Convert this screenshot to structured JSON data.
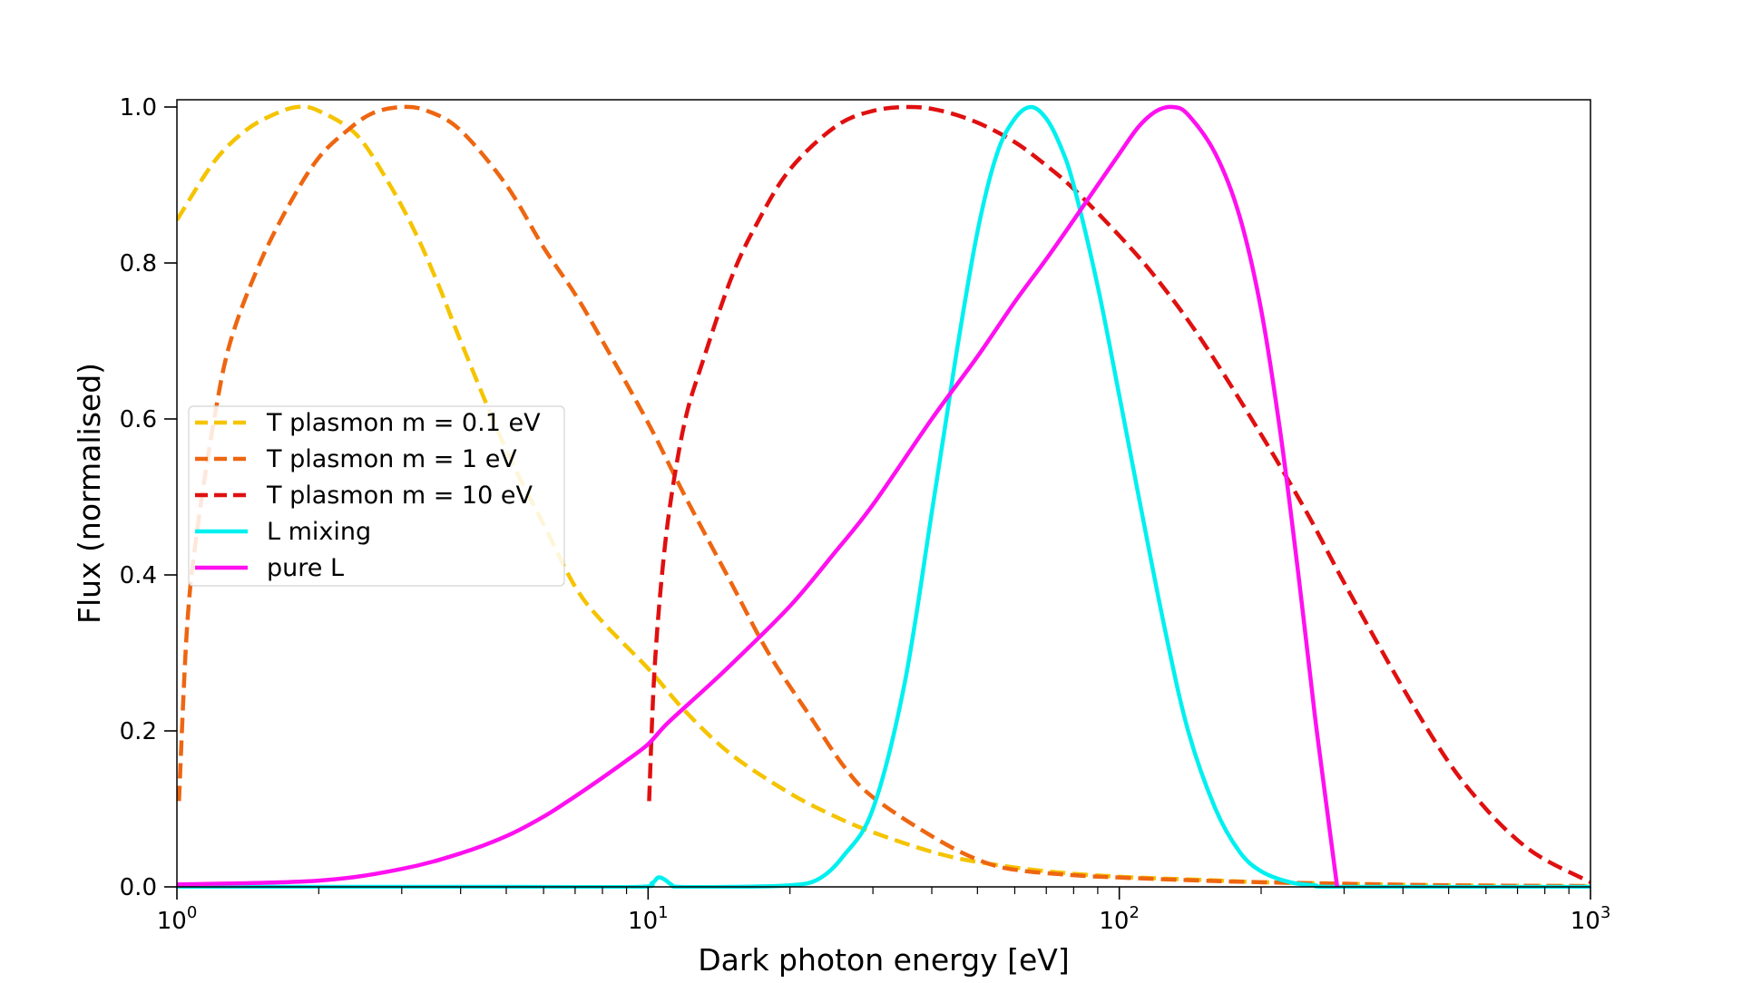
{
  "chart_data": {
    "type": "line",
    "xlabel": "Dark photon energy [eV]",
    "ylabel": "Flux (normalised)",
    "xscale": "log",
    "xlim": [
      1,
      1000
    ],
    "ylim": [
      0,
      1.0
    ],
    "grid": false,
    "legend_position": "center-left",
    "x_ticks": [
      {
        "value": 1,
        "base": "10",
        "exp": "0"
      },
      {
        "value": 10,
        "base": "10",
        "exp": "1"
      },
      {
        "value": 100,
        "base": "10",
        "exp": "2"
      },
      {
        "value": 1000,
        "base": "10",
        "exp": "3"
      }
    ],
    "y_ticks": [
      {
        "value": 0.0,
        "label": "0.0"
      },
      {
        "value": 0.2,
        "label": "0.2"
      },
      {
        "value": 0.4,
        "label": "0.4"
      },
      {
        "value": 0.6,
        "label": "0.6"
      },
      {
        "value": 0.8,
        "label": "0.8"
      },
      {
        "value": 1.0,
        "label": "1.0"
      }
    ],
    "series": [
      {
        "name": "T plasmon m = 0.1 eV",
        "color": "#f5c400",
        "dashed": true,
        "x": [
          1.0,
          1.2,
          1.4,
          1.6,
          1.8,
          2.0,
          2.4,
          2.8,
          3.2,
          3.6,
          4.0,
          5.0,
          6.0,
          7.0,
          8.0,
          10.0,
          12.0,
          15.0,
          20.0,
          25.0,
          30.0,
          40.0,
          50.0,
          70.0,
          100.0,
          150.0,
          200.0,
          300.0,
          500.0,
          1000.0
        ],
        "y": [
          0.855,
          0.93,
          0.97,
          0.99,
          1.0,
          0.995,
          0.965,
          0.905,
          0.84,
          0.77,
          0.7,
          0.56,
          0.465,
          0.385,
          0.34,
          0.28,
          0.225,
          0.17,
          0.12,
          0.09,
          0.07,
          0.045,
          0.032,
          0.02,
          0.013,
          0.009,
          0.006,
          0.004,
          0.002,
          0.001
        ]
      },
      {
        "name": "T plasmon m = 1 eV",
        "color": "#ee6611",
        "dashed": true,
        "x": [
          1.01,
          1.05,
          1.1,
          1.2,
          1.3,
          1.5,
          1.75,
          2.0,
          2.3,
          2.6,
          3.0,
          3.4,
          4.0,
          5.0,
          6.0,
          7.0,
          8.0,
          10.0,
          12.0,
          15.0,
          18.0,
          22.0,
          26.0,
          30.0,
          40.0,
          50.0,
          60.0,
          80.0,
          100.0,
          150.0,
          200.0,
          300.0,
          500.0,
          1000.0
        ],
        "y": [
          0.11,
          0.33,
          0.45,
          0.6,
          0.7,
          0.8,
          0.88,
          0.935,
          0.97,
          0.992,
          1.0,
          0.995,
          0.97,
          0.9,
          0.82,
          0.76,
          0.7,
          0.595,
          0.5,
          0.39,
          0.3,
          0.22,
          0.155,
          0.115,
          0.065,
          0.035,
          0.022,
          0.015,
          0.012,
          0.008,
          0.006,
          0.004,
          0.002,
          0.001
        ]
      },
      {
        "name": "T plasmon m = 10 eV",
        "color": "#e01010",
        "dashed": true,
        "x": [
          10.05,
          10.3,
          10.7,
          11.2,
          12.0,
          13.0,
          15.0,
          17.0,
          20.0,
          25.0,
          30.0,
          36.0,
          42.0,
          50.0,
          60.0,
          70.0,
          80.0,
          100.0,
          120.0,
          150.0,
          200.0,
          250.0,
          300.0,
          400.0,
          500.0,
          600.0,
          700.0,
          800.0,
          1000.0
        ],
        "y": [
          0.11,
          0.27,
          0.4,
          0.5,
          0.6,
          0.67,
          0.78,
          0.85,
          0.92,
          0.975,
          0.995,
          1.0,
          0.995,
          0.98,
          0.955,
          0.925,
          0.895,
          0.835,
          0.78,
          0.7,
          0.58,
          0.48,
          0.39,
          0.255,
          0.16,
          0.1,
          0.06,
          0.035,
          0.006
        ]
      },
      {
        "name": "L mixing",
        "color": "#00f0f0",
        "dashed": false,
        "x": [
          1.0,
          5.0,
          9.5,
          10.2,
          10.5,
          10.8,
          11.2,
          11.6,
          15.0,
          20.0,
          23.0,
          26.0,
          30.0,
          35.0,
          40.0,
          45.0,
          50.0,
          55.0,
          60.0,
          65.0,
          70.0,
          75.0,
          80.0,
          90.0,
          100.0,
          110.0,
          125.0,
          140.0,
          160.0,
          180.0,
          200.0,
          230.0,
          260.0,
          300.0,
          1000.0
        ],
        "y": [
          0.0,
          0.0,
          0.0,
          0.005,
          0.012,
          0.01,
          0.003,
          0.0,
          0.0,
          0.002,
          0.01,
          0.04,
          0.1,
          0.26,
          0.48,
          0.68,
          0.84,
          0.94,
          0.985,
          1.0,
          0.985,
          0.95,
          0.9,
          0.77,
          0.63,
          0.5,
          0.33,
          0.2,
          0.1,
          0.045,
          0.02,
          0.006,
          0.002,
          0.0,
          0.0
        ]
      },
      {
        "name": "pure L",
        "color": "#ff10f0",
        "dashed": false,
        "x": [
          1.0,
          2.0,
          3.0,
          4.0,
          5.0,
          6.0,
          7.0,
          8.0,
          9.0,
          10.0,
          11.0,
          13.0,
          15.0,
          20.0,
          25.0,
          30.0,
          40.0,
          50.0,
          60.0,
          70.0,
          80.0,
          90.0,
          100.0,
          110.0,
          120.0,
          130.0,
          140.0,
          160.0,
          180.0,
          200.0,
          220.0,
          240.0,
          260.0,
          280.0,
          290.0
        ],
        "y": [
          0.003,
          0.008,
          0.023,
          0.043,
          0.065,
          0.09,
          0.116,
          0.14,
          0.162,
          0.183,
          0.21,
          0.25,
          0.285,
          0.36,
          0.43,
          0.49,
          0.6,
          0.68,
          0.75,
          0.805,
          0.855,
          0.9,
          0.94,
          0.975,
          0.995,
          1.0,
          0.99,
          0.94,
          0.86,
          0.74,
          0.58,
          0.4,
          0.22,
          0.07,
          0.0
        ]
      }
    ]
  }
}
